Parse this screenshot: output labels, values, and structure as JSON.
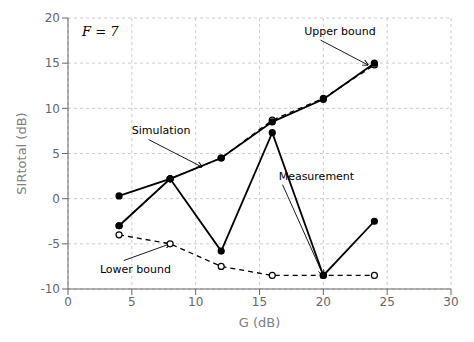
{
  "chart_data": {
    "type": "line",
    "xlabel": "G (dB)",
    "ylabel": "SIRtotal (dB)",
    "x": [
      4,
      8,
      12,
      16,
      20,
      24
    ],
    "series": [
      {
        "name": "Upper bound",
        "color": "#000000",
        "line_style": "dashed",
        "marker": "open-circle",
        "values": [
          -3.0,
          2.2,
          4.5,
          8.7,
          11.1,
          14.8
        ]
      },
      {
        "name": "Lower bound",
        "color": "#000000",
        "line_style": "dashed",
        "marker": "open-circle",
        "values": [
          -4.0,
          -5.0,
          -7.5,
          -8.5,
          -8.5,
          -8.5
        ]
      },
      {
        "name": "Simulation",
        "color": "#000000",
        "line_style": "solid",
        "marker": "circle",
        "values": [
          -3.0,
          2.2,
          4.5,
          8.5,
          11.0,
          15.0
        ]
      },
      {
        "name": "Measurement",
        "color": "#000000",
        "line_style": "solid",
        "marker": "circle",
        "values": [
          0.3,
          2.2,
          -5.8,
          7.3,
          -8.5,
          -2.5
        ]
      }
    ],
    "xlim": [
      0,
      30
    ],
    "ylim": [
      -10,
      20
    ],
    "xticks": [
      0,
      5,
      10,
      15,
      20,
      25,
      30
    ],
    "yticks": [
      -10,
      -5,
      0,
      5,
      10,
      15,
      20
    ],
    "grid": true,
    "annotations": [
      {
        "text": "F = 7"
      },
      {
        "text": "Upper bound",
        "x": 23.5,
        "y": 14.8,
        "text_x": 18.5,
        "text_y": 18.5
      },
      {
        "text": "Lower bound",
        "x": 8.0,
        "y": -5.0,
        "text_x": 2.5,
        "text_y": -7.8
      },
      {
        "text": "Simulation",
        "x": 10.5,
        "y": 3.5,
        "text_x": 5.0,
        "text_y": 7.5
      },
      {
        "text": "Measurement",
        "x": 20.0,
        "y": -8.5,
        "text_x": 16.5,
        "text_y": 2.5
      }
    ]
  }
}
